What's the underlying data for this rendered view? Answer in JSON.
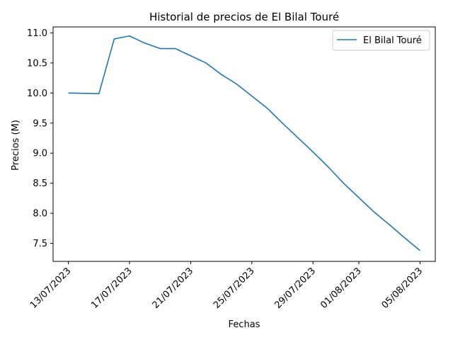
{
  "chart_data": {
    "type": "line",
    "title": "Historial de precios de El Bilal Touré",
    "xlabel": "Fechas",
    "ylabel": "Precios (M)",
    "x": [
      "2023-07-13",
      "2023-07-15",
      "2023-07-16",
      "2023-07-17",
      "2023-07-18",
      "2023-07-19",
      "2023-07-20",
      "2023-07-21",
      "2023-07-22",
      "2023-07-23",
      "2023-07-24",
      "2023-07-25",
      "2023-07-26",
      "2023-07-27",
      "2023-07-28",
      "2023-07-29",
      "2023-07-30",
      "2023-07-31",
      "2023-08-01",
      "2023-08-02",
      "2023-08-03",
      "2023-08-04",
      "2023-08-05"
    ],
    "series": [
      {
        "name": "El Bilal Touré",
        "color": "#1f77b4",
        "values": [
          10.0,
          9.99,
          10.9,
          10.95,
          10.83,
          10.74,
          10.74,
          10.62,
          10.5,
          10.31,
          10.15,
          9.95,
          9.75,
          9.5,
          9.26,
          9.02,
          8.77,
          8.5,
          8.26,
          8.02,
          7.81,
          7.59,
          7.38
        ]
      }
    ],
    "xticks": [
      "2023-07-13",
      "2023-07-17",
      "2023-07-21",
      "2023-07-25",
      "2023-07-29",
      "2023-08-01",
      "2023-08-05"
    ],
    "xtick_labels": [
      "13/07/2023",
      "17/07/2023",
      "21/07/2023",
      "25/07/2023",
      "29/07/2023",
      "01/08/2023",
      "05/08/2023"
    ],
    "yticks": [
      7.5,
      8.0,
      8.5,
      9.0,
      9.5,
      10.0,
      10.5,
      11.0
    ],
    "ytick_labels": [
      "7.5",
      "8.0",
      "8.5",
      "9.0",
      "9.5",
      "10.0",
      "10.5",
      "11.0"
    ],
    "xlim": [
      "2023-07-12",
      "2023-08-06"
    ],
    "ylim": [
      7.2,
      11.1
    ],
    "grid": false,
    "legend_position": "top-right"
  }
}
